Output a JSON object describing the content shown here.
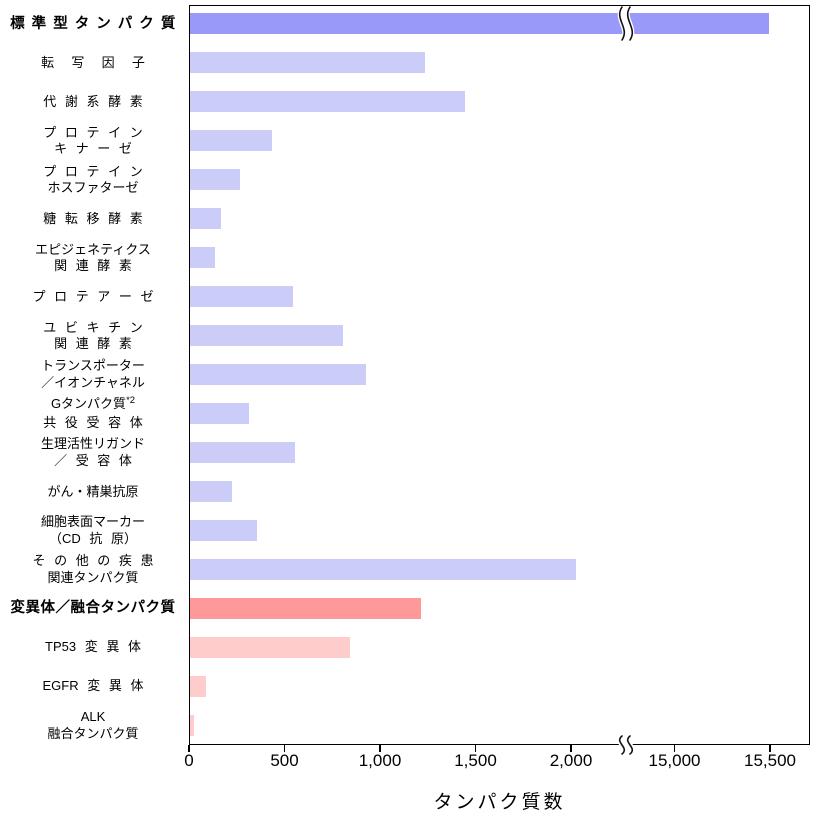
{
  "chart_data": {
    "type": "bar",
    "orientation": "horizontal",
    "title": "",
    "xlabel": "タンパク質数",
    "grid": false,
    "legend": false,
    "axis_break": {
      "present": true,
      "between_values": [
        2000,
        15000
      ]
    },
    "x_axis": {
      "segment1_range": [
        0,
        2340
      ],
      "segment2_range": [
        14790,
        15700
      ],
      "ticks": [
        {
          "value": 0,
          "label": "0"
        },
        {
          "value": 500,
          "label": "500"
        },
        {
          "value": 1000,
          "label": "1,000"
        },
        {
          "value": 1500,
          "label": "1,500"
        },
        {
          "value": 2000,
          "label": "2,000"
        },
        {
          "value": 15000,
          "label": "15,000"
        },
        {
          "value": 15500,
          "label": "15,500"
        }
      ]
    },
    "colors": {
      "standard_header_bar": "#9999FA",
      "standard_item_bar": "#CCCCF8",
      "mutant_header_bar": "#FF9999",
      "mutant_item_bar": "#FFCCCC",
      "axis": "#000000",
      "text": "#000000"
    },
    "rows": [
      {
        "label": "標 準 型 タ ン パ ク 質",
        "value": 15490,
        "color": "#9999FA",
        "bold": true,
        "bar_has_axis_break": true
      },
      {
        "label": "転  写  因  子",
        "value": 1230,
        "color": "#CCCCF8"
      },
      {
        "label": "代 謝 系 酵 素",
        "value": 1440,
        "color": "#CCCCF8"
      },
      {
        "label": "プ ロ テ イ ン\nキ ナ ー ゼ",
        "value": 430,
        "color": "#CCCCF8"
      },
      {
        "label": "プ ロ テ イ ン\nホスファターゼ",
        "value": 260,
        "color": "#CCCCF8"
      },
      {
        "label": "糖 転 移 酵 素",
        "value": 160,
        "color": "#CCCCF8"
      },
      {
        "label": "エピジェネティクス\n関 連 酵 素",
        "value": 130,
        "color": "#CCCCF8"
      },
      {
        "label": "プ ロ テ ア ー ゼ",
        "value": 540,
        "color": "#CCCCF8"
      },
      {
        "label": "ユ ビ キ チ ン\n関 連 酵 素",
        "value": 800,
        "color": "#CCCCF8"
      },
      {
        "label": "トランスポーター\n／イオンチャネル",
        "value": 920,
        "color": "#CCCCF8"
      },
      {
        "label": "Gタンパク質*2\n共 役 受 容 体",
        "value": 310,
        "color": "#CCCCF8"
      },
      {
        "label": "生理活性リガンド\n／ 受 容 体",
        "value": 550,
        "color": "#CCCCF8"
      },
      {
        "label": "がん・精巣抗原",
        "value": 220,
        "color": "#CCCCF8"
      },
      {
        "label": "細胞表面マーカー\n（CD 抗 原）",
        "value": 350,
        "color": "#CCCCF8"
      },
      {
        "label": "そ の 他 の 疾 患\n関連タンパク質",
        "value": 2020,
        "color": "#CCCCF8"
      },
      {
        "label": "変異体／融合タンパク質",
        "value": 1210,
        "color": "#FF9999",
        "bold": true
      },
      {
        "label": "TP53 変 異 体",
        "value": 840,
        "color": "#FFCCCC"
      },
      {
        "label": "EGFR 変 異 体",
        "value": 85,
        "color": "#FFCCCC"
      },
      {
        "label": "ALK\n融合タンパク質",
        "value": 20,
        "color": "#FFCCCC"
      }
    ],
    "footnote_marker": "*2"
  }
}
